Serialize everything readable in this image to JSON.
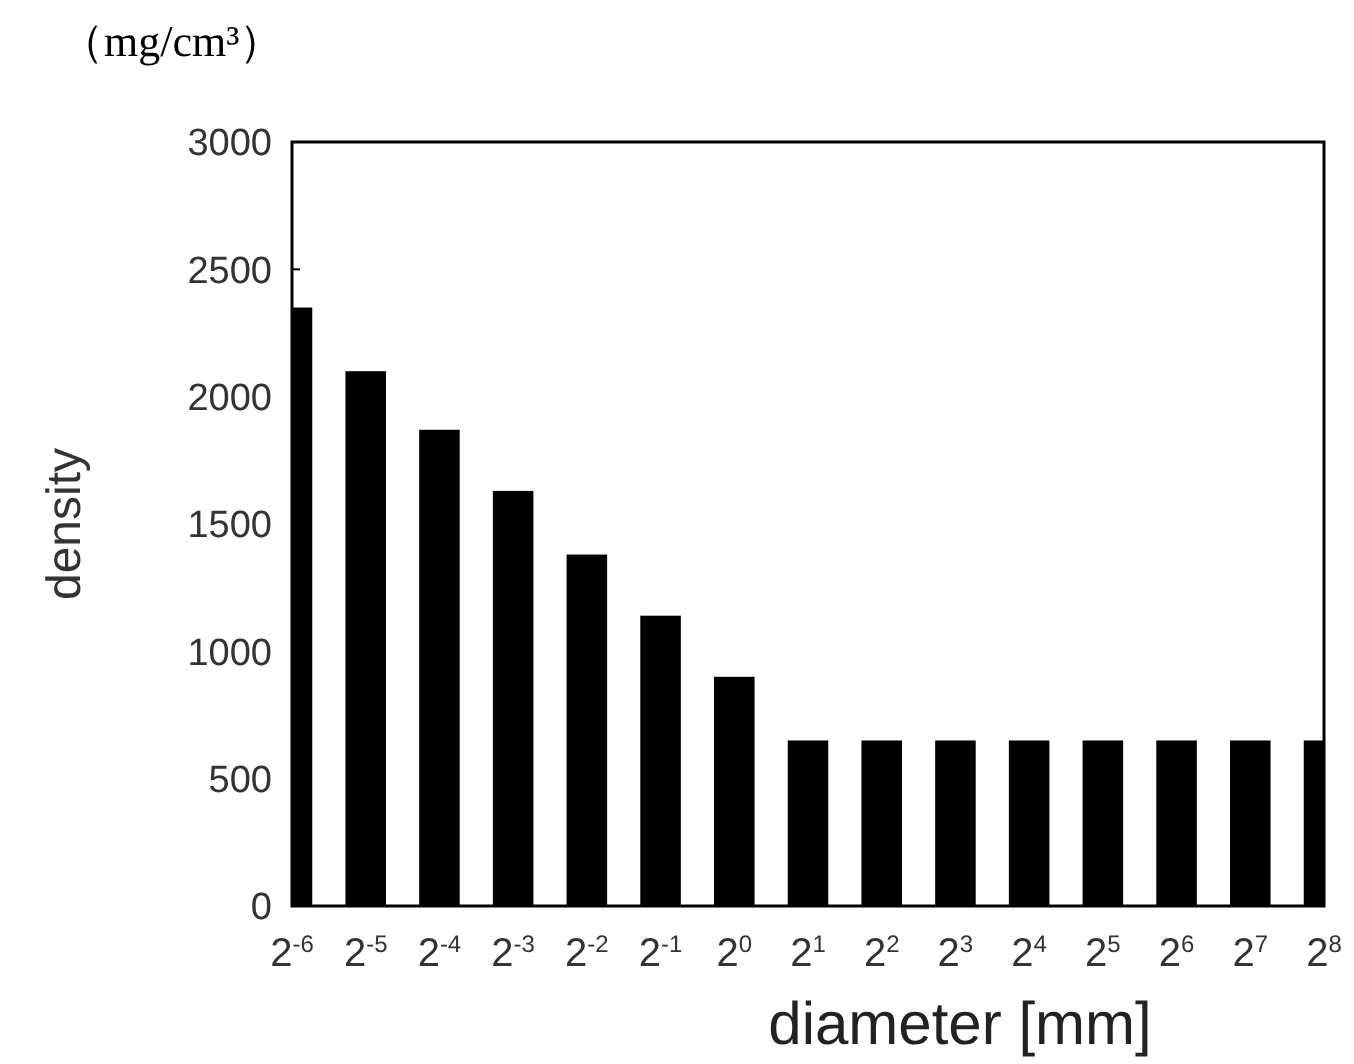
{
  "chart_data": {
    "type": "bar",
    "annotations": [
      "（mg/cm³）"
    ],
    "xlabel": "diameter [mm]",
    "ylabel": "density",
    "categories": [
      "2$^{-6}$",
      "2$^{-5}$",
      "2$^{-4}$",
      "2$^{-3}$",
      "2$^{-2}$",
      "2$^{-1}$",
      "2$^{0}$",
      "2$^{1}$",
      "2$^{2}$",
      "2$^{3}$",
      "2$^{4}$",
      "2$^{5}$",
      "2$^{6}$",
      "2$^{7}$",
      "2$^{8}$"
    ],
    "values": [
      2350,
      2100,
      1870,
      1630,
      1380,
      1140,
      900,
      650,
      650,
      650,
      650,
      650,
      650,
      650,
      650
    ],
    "color": "#000000",
    "ylim": [
      0,
      3000
    ],
    "yticks": [
      0,
      500,
      1000,
      1500,
      2000,
      2500,
      3000
    ],
    "grid": false
  }
}
